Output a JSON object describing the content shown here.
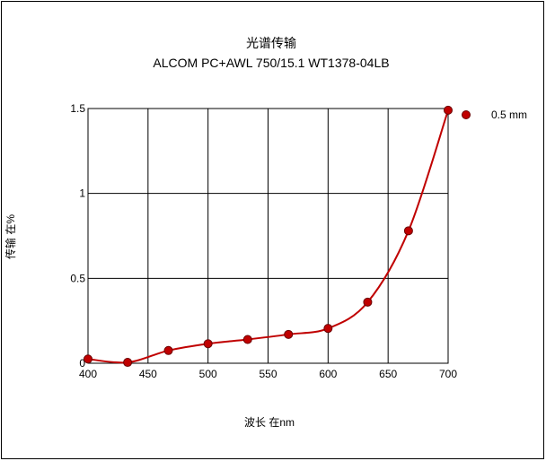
{
  "chart_data": {
    "type": "line",
    "title": "光谱传输",
    "subtitle": "ALCOM PC+AWL 750/15.1  WT1378-04LB",
    "xlabel": "波长 在nm",
    "ylabel": "传输 在%",
    "xlim": [
      400,
      700
    ],
    "ylim": [
      0,
      1.5
    ],
    "xticks": [
      400,
      450,
      500,
      550,
      600,
      650,
      700
    ],
    "yticks": [
      0,
      0.5,
      1,
      1.5
    ],
    "ytick_labels": [
      "0",
      "0.5",
      "1",
      "1.5"
    ],
    "grid": true,
    "legend_position": "top-right",
    "series": [
      {
        "name": "0.5 mm",
        "color": "#c00000",
        "x": [
          400,
          433,
          467,
          500,
          533,
          567,
          600,
          633,
          667,
          700
        ],
        "y": [
          0.025,
          0.005,
          0.075,
          0.115,
          0.14,
          0.17,
          0.205,
          0.36,
          0.78,
          1.49
        ]
      }
    ]
  }
}
